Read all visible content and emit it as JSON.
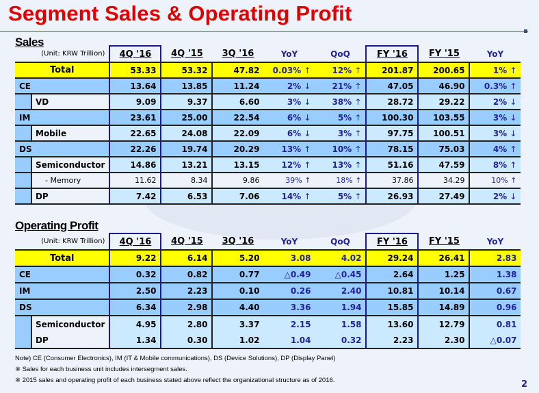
{
  "title": "Segment Sales & Operating Profit",
  "page_number": "2",
  "columns": [
    "4Q '16",
    "4Q '15",
    "3Q '16",
    "YoY",
    "QoQ",
    "FY '16",
    "FY '15",
    "YoY"
  ],
  "sales": {
    "heading": "Sales",
    "unit": "(Unit: KRW Trillion)",
    "rows": [
      {
        "label": "Total",
        "style": "total",
        "values": [
          "53.33",
          "53.32",
          "47.82",
          "0.03% ↑",
          "12% ↑",
          "201.87",
          "200.65",
          "1% ↑"
        ]
      },
      {
        "label": "CE",
        "style": "dark",
        "values": [
          "13.64",
          "13.85",
          "11.24",
          "2% ↓",
          "21% ↑",
          "47.05",
          "46.90",
          "0.3% ↑"
        ]
      },
      {
        "label": "VD",
        "style": "light-sub",
        "values": [
          "9.09",
          "9.37",
          "6.60",
          "3% ↓",
          "38% ↑",
          "28.72",
          "29.22",
          "2% ↓"
        ]
      },
      {
        "label": "IM",
        "style": "dark",
        "values": [
          "23.61",
          "25.00",
          "22.54",
          "6% ↓",
          "5% ↑",
          "100.30",
          "103.55",
          "3% ↓"
        ]
      },
      {
        "label": "Mobile",
        "style": "light-sub",
        "values": [
          "22.65",
          "24.08",
          "22.09",
          "6% ↓",
          "3% ↑",
          "97.75",
          "100.51",
          "3% ↓"
        ]
      },
      {
        "label": "DS",
        "style": "dark",
        "values": [
          "22.26",
          "19.74",
          "20.29",
          "13% ↑",
          "10% ↑",
          "78.15",
          "75.03",
          "4% ↑"
        ]
      },
      {
        "label": "Semiconductor",
        "style": "light-sub",
        "values": [
          "14.86",
          "13.21",
          "13.15",
          "12% ↑",
          "13% ↑",
          "51.16",
          "47.59",
          "8% ↑"
        ]
      },
      {
        "label": "- Memory",
        "style": "mem",
        "values": [
          "11.62",
          "8.34",
          "9.86",
          "39% ↑",
          "18% ↑",
          "37.86",
          "34.29",
          "10% ↑"
        ]
      },
      {
        "label": "DP",
        "style": "light-sub",
        "values": [
          "7.42",
          "6.53",
          "7.06",
          "14% ↑",
          "5% ↑",
          "26.93",
          "27.49",
          "2% ↓"
        ]
      }
    ]
  },
  "operating_profit": {
    "heading": "Operating Profit",
    "unit": "(Unit: KRW Trillion)",
    "rows": [
      {
        "label": "Total",
        "style": "total",
        "values": [
          "9.22",
          "6.14",
          "5.20",
          "3.08",
          "4.02",
          "29.24",
          "26.41",
          "2.83"
        ]
      },
      {
        "label": "CE",
        "style": "dark",
        "values": [
          "0.32",
          "0.82",
          "0.77",
          "△0.49",
          "△0.45",
          "2.64",
          "1.25",
          "1.38"
        ]
      },
      {
        "label": "IM",
        "style": "dark",
        "values": [
          "2.50",
          "2.23",
          "0.10",
          "0.26",
          "2.40",
          "10.81",
          "10.14",
          "0.67"
        ]
      },
      {
        "label": "DS",
        "style": "dark",
        "values": [
          "6.34",
          "2.98",
          "4.40",
          "3.36",
          "1.94",
          "15.85",
          "14.89",
          "0.96"
        ]
      },
      {
        "label": "Semiconductor",
        "style": "light-sub",
        "values": [
          "4.95",
          "2.80",
          "3.37",
          "2.15",
          "1.58",
          "13.60",
          "12.79",
          "0.81"
        ]
      },
      {
        "label": "DP",
        "style": "light-sub-nosep",
        "values": [
          "1.34",
          "0.30",
          "1.02",
          "1.04",
          "0.32",
          "2.23",
          "2.30",
          "△0.07"
        ]
      }
    ]
  },
  "notes": [
    "Note) CE (Consumer Electronics), IM (IT & Mobile communications),  DS (Device Solutions), DP (Display Panel)",
    "※ Sales for each business unit includes intersegment sales.",
    "※ 2015 sales and operating profit of each business stated above reflect the organizational structure as of 2016."
  ],
  "colors": {
    "title": "#e00000",
    "total_row": "#ffff00",
    "segment_row": "#99ccff",
    "sub_row": "#cceaff",
    "change_text": "#22229a"
  }
}
